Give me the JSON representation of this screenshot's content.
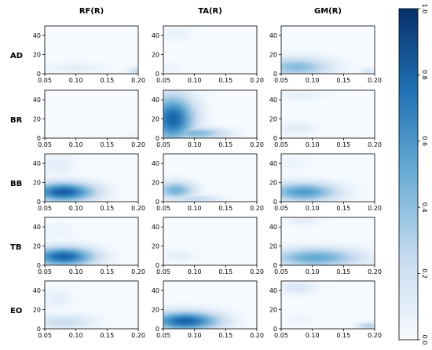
{
  "chart_data": {
    "type": "heatmap",
    "columns": [
      "RF(R)",
      "TA(R)",
      "GM(R)"
    ],
    "rows": [
      "AD",
      "BR",
      "BB",
      "TB",
      "EO"
    ],
    "x_ticks": [
      "0.05",
      "0.10",
      "0.15",
      "0.20"
    ],
    "y_ticks": [
      "0",
      "20",
      "40"
    ],
    "xlim": [
      0.05,
      0.2
    ],
    "ylim": [
      0,
      50
    ],
    "colorbar": {
      "range": [
        0.0,
        1.0
      ],
      "ticks": [
        "0.0",
        "0.2",
        "0.4",
        "0.6",
        "0.8",
        "1.0"
      ],
      "colors": [
        "#f7fbff",
        "#c6dbef",
        "#6baed6",
        "#2171b5",
        "#08306b"
      ]
    },
    "panels": [
      [
        {
          "blobs": [
            {
              "cx": 0.1,
              "cy": 6,
              "rx": 0.05,
              "ry": 6,
              "v": 0.1
            },
            {
              "cx": 0.195,
              "cy": 3,
              "rx": 0.012,
              "ry": 4,
              "v": 0.2
            }
          ]
        },
        {
          "blobs": [
            {
              "cx": 0.07,
              "cy": 42,
              "rx": 0.025,
              "ry": 8,
              "v": 0.08
            },
            {
              "cx": 0.06,
              "cy": 6,
              "rx": 0.02,
              "ry": 6,
              "v": 0.06
            }
          ]
        },
        {
          "blobs": [
            {
              "cx": 0.075,
              "cy": 7,
              "rx": 0.055,
              "ry": 10,
              "v": 0.42
            },
            {
              "cx": 0.19,
              "cy": 3,
              "rx": 0.015,
              "ry": 4,
              "v": 0.15
            }
          ]
        }
      ],
      [
        {
          "blobs": [
            {
              "cx": 0.19,
              "cy": 3,
              "rx": 0.012,
              "ry": 3,
              "v": 0.05
            }
          ]
        },
        {
          "blobs": [
            {
              "cx": 0.065,
              "cy": 20,
              "rx": 0.035,
              "ry": 24,
              "v": 0.8
            },
            {
              "cx": 0.1,
              "cy": 5,
              "rx": 0.05,
              "ry": 6,
              "v": 0.45
            }
          ]
        },
        {
          "blobs": [
            {
              "cx": 0.08,
              "cy": 45,
              "rx": 0.04,
              "ry": 6,
              "v": 0.08
            },
            {
              "cx": 0.075,
              "cy": 10,
              "rx": 0.03,
              "ry": 7,
              "v": 0.12
            }
          ]
        }
      ],
      [
        {
          "blobs": [
            {
              "cx": 0.08,
              "cy": 10,
              "rx": 0.05,
              "ry": 10,
              "v": 0.82
            },
            {
              "cx": 0.07,
              "cy": 38,
              "rx": 0.03,
              "ry": 12,
              "v": 0.1
            }
          ]
        },
        {
          "blobs": [
            {
              "cx": 0.07,
              "cy": 12,
              "rx": 0.03,
              "ry": 9,
              "v": 0.48
            },
            {
              "cx": 0.1,
              "cy": 3,
              "rx": 0.04,
              "ry": 4,
              "v": 0.25
            }
          ]
        },
        {
          "blobs": [
            {
              "cx": 0.085,
              "cy": 10,
              "rx": 0.055,
              "ry": 10,
              "v": 0.58
            },
            {
              "cx": 0.07,
              "cy": 40,
              "rx": 0.03,
              "ry": 8,
              "v": 0.06
            }
          ]
        }
      ],
      [
        {
          "blobs": [
            {
              "cx": 0.08,
              "cy": 9,
              "rx": 0.05,
              "ry": 10,
              "v": 0.8
            },
            {
              "cx": 0.07,
              "cy": 35,
              "rx": 0.03,
              "ry": 10,
              "v": 0.06
            }
          ]
        },
        {
          "blobs": [
            {
              "cx": 0.075,
              "cy": 10,
              "rx": 0.025,
              "ry": 6,
              "v": 0.1
            }
          ]
        },
        {
          "blobs": [
            {
              "cx": 0.105,
              "cy": 8,
              "rx": 0.07,
              "ry": 10,
              "v": 0.52
            },
            {
              "cx": 0.085,
              "cy": 46,
              "rx": 0.03,
              "ry": 5,
              "v": 0.1
            }
          ]
        }
      ],
      [
        {
          "blobs": [
            {
              "cx": 0.08,
              "cy": 7,
              "rx": 0.05,
              "ry": 8,
              "v": 0.22
            },
            {
              "cx": 0.07,
              "cy": 32,
              "rx": 0.025,
              "ry": 10,
              "v": 0.1
            }
          ]
        },
        {
          "blobs": [
            {
              "cx": 0.085,
              "cy": 8,
              "rx": 0.055,
              "ry": 10,
              "v": 0.8
            }
          ]
        },
        {
          "blobs": [
            {
              "cx": 0.075,
              "cy": 43,
              "rx": 0.03,
              "ry": 7,
              "v": 0.16
            },
            {
              "cx": 0.19,
              "cy": 3,
              "rx": 0.018,
              "ry": 4,
              "v": 0.3
            },
            {
              "cx": 0.08,
              "cy": 10,
              "rx": 0.03,
              "ry": 6,
              "v": 0.05
            }
          ]
        }
      ]
    ]
  }
}
